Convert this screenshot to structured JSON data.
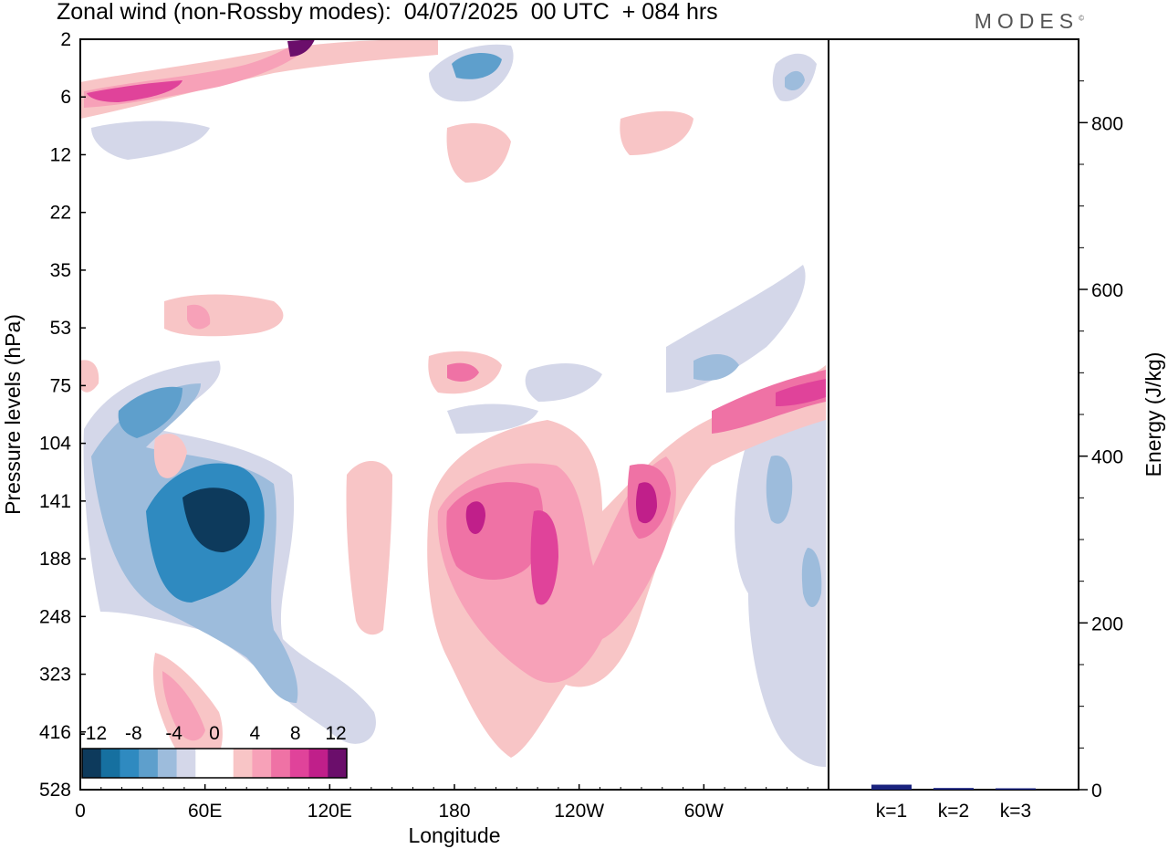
{
  "header": {
    "title": "Zonal wind (non-Rossby modes):  04/07/2025  00 UTC  + 084 hrs",
    "brand": "MODES"
  },
  "colors": {
    "negative": [
      "#0d3a5c",
      "#1670a0",
      "#2f8ac0",
      "#5e9fcc",
      "#9dbcdc",
      "#d4d7e9"
    ],
    "zero": "#ffffff",
    "positive": [
      "#f8c5c6",
      "#f7a1b8",
      "#ef72a5",
      "#e0439a",
      "#c01f8a",
      "#6b0e6b"
    ],
    "bar": "#1a237e"
  },
  "chart_data": [
    {
      "type": "heatmap",
      "xlabel": "Longitude",
      "ylabel": "Pressure levels (hPa)",
      "x_ticks": [
        "0",
        "60E",
        "120E",
        "180",
        "120W",
        "60W"
      ],
      "y_ticks": [
        "2",
        "6",
        "12",
        "22",
        "35",
        "53",
        "75",
        "104",
        "141",
        "188",
        "248",
        "323",
        "416",
        "528"
      ],
      "colorbar": {
        "labels": [
          "-12",
          "-8",
          "-4",
          "0",
          "4",
          "8",
          "12"
        ],
        "levels": 13
      },
      "features": [
        {
          "lon": 70,
          "level": 141,
          "value": -13
        },
        {
          "lon": 50,
          "level": 188,
          "value": -9
        },
        {
          "lon": 30,
          "level": 104,
          "value": -6
        },
        {
          "lon": 95,
          "level": 323,
          "value": -4
        },
        {
          "lon": 190,
          "level": 141,
          "value": 10
        },
        {
          "lon": 220,
          "level": 188,
          "value": 8
        },
        {
          "lon": 270,
          "level": 141,
          "value": 11
        },
        {
          "lon": 350,
          "level": 75,
          "value": 8
        },
        {
          "lon": 20,
          "level": 6,
          "value": 10
        },
        {
          "lon": 105,
          "level": 2,
          "value": 12
        },
        {
          "lon": 185,
          "level": 2,
          "value": -6
        },
        {
          "lon": 45,
          "level": 416,
          "value": 6
        }
      ]
    },
    {
      "type": "bar",
      "ylabel": "Energy (J/kg)",
      "categories": [
        "k=1",
        "k=2",
        "k=3"
      ],
      "values": [
        6,
        2,
        1
      ],
      "ylim": [
        0,
        900
      ],
      "y_ticks": [
        "0",
        "200",
        "400",
        "600",
        "800"
      ]
    }
  ]
}
